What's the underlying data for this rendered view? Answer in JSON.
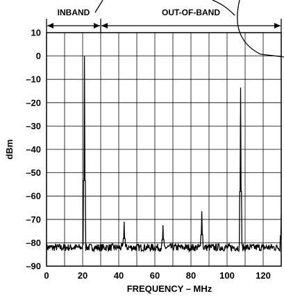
{
  "chart_data": {
    "type": "line",
    "title": "",
    "xlabel": "FREQUENCY – MHz",
    "ylabel": "dBm",
    "xlim": [
      0,
      130
    ],
    "ylim": [
      -90,
      10
    ],
    "x_ticks": [
      0,
      20,
      40,
      60,
      80,
      100,
      120
    ],
    "y_ticks": [
      10,
      0,
      -10,
      -20,
      -30,
      -40,
      -50,
      -60,
      -70,
      -80,
      -90
    ],
    "x_tick_labels": [
      "0",
      "20",
      "40",
      "60",
      "80",
      "100",
      "120"
    ],
    "y_tick_labels": [
      "10",
      "0",
      "–10",
      "–20",
      "–30",
      "–40",
      "–50",
      "–60",
      "–70",
      "–80",
      "–90"
    ],
    "grid": true,
    "noise_floor_dbm": -82,
    "peaks": [
      {
        "x": 21,
        "y": 0
      },
      {
        "x": 43,
        "y": -71
      },
      {
        "x": 64.5,
        "y": -72.5
      },
      {
        "x": 86,
        "y": -66.5
      },
      {
        "x": 107.5,
        "y": -13.5
      },
      {
        "x": 130,
        "y": -68
      }
    ],
    "bands": [
      {
        "label": "INBAND",
        "from": 0,
        "to": 30
      },
      {
        "label": "OUT-OF-BAND",
        "from": 30,
        "to": 130
      }
    ]
  }
}
